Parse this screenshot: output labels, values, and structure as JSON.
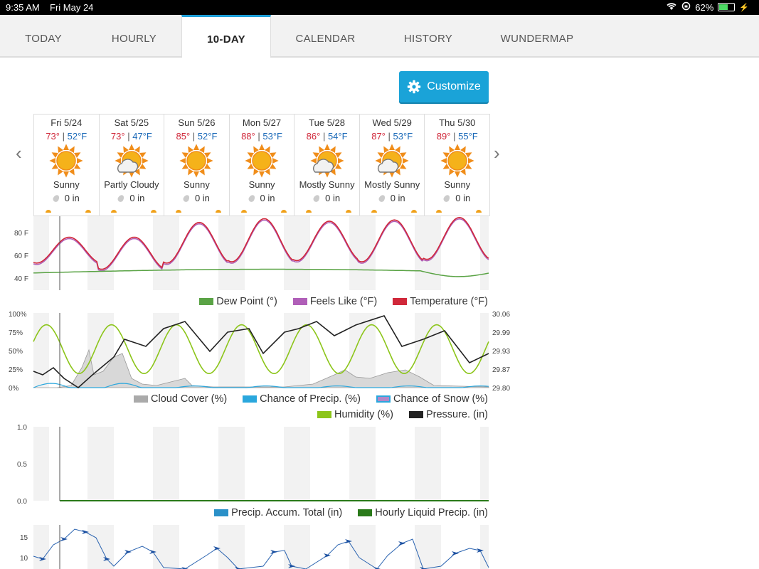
{
  "status_bar": {
    "time": "9:35 AM",
    "date": "Fri May 24",
    "battery": "62%"
  },
  "tabs": [
    {
      "label": "TODAY",
      "active": false
    },
    {
      "label": "HOURLY",
      "active": false
    },
    {
      "label": "10-DAY",
      "active": true
    },
    {
      "label": "CALENDAR",
      "active": false
    },
    {
      "label": "HISTORY",
      "active": false
    },
    {
      "label": "WUNDERMAP",
      "active": false
    }
  ],
  "customize_label": "Customize",
  "days": [
    {
      "name": "Fri 5/24",
      "hi": "73°",
      "lo": "52°F",
      "cond": "Sunny",
      "icon": "sun",
      "precip": "0 in"
    },
    {
      "name": "Sat 5/25",
      "hi": "73°",
      "lo": "47°F",
      "cond": "Partly Cloudy",
      "icon": "sun-cloud",
      "precip": "0 in"
    },
    {
      "name": "Sun 5/26",
      "hi": "85°",
      "lo": "52°F",
      "cond": "Sunny",
      "icon": "sun",
      "precip": "0 in"
    },
    {
      "name": "Mon 5/27",
      "hi": "88°",
      "lo": "53°F",
      "cond": "Sunny",
      "icon": "sun",
      "precip": "0 in"
    },
    {
      "name": "Tue 5/28",
      "hi": "86°",
      "lo": "54°F",
      "cond": "Mostly Sunny",
      "icon": "sun-cloud",
      "precip": "0 in"
    },
    {
      "name": "Wed 5/29",
      "hi": "87°",
      "lo": "53°F",
      "cond": "Mostly Sunny",
      "icon": "sun-cloud",
      "precip": "0 in"
    },
    {
      "name": "Thu 5/30",
      "hi": "89°",
      "lo": "55°F",
      "cond": "Sunny",
      "icon": "sun",
      "precip": "0 in"
    }
  ],
  "colors": {
    "accent": "#1aa3d8",
    "temperature": "#d0283a",
    "feels_like": "#b05fb8",
    "dew_point": "#5aa345",
    "humidity": "#8cc51a",
    "pressure": "#222222",
    "cloud": "#bbbbbb",
    "precip": "#2aa7dd",
    "snow": "#b387c7",
    "liquid": "#2a7a1a",
    "wind": "#2a63b0"
  },
  "temp_chart": {
    "y_ticks": [
      "80 F",
      "60 F",
      "40 F"
    ],
    "legend": [
      "Dew Point (°)",
      "Feels Like (°F)",
      "Temperature (°F)"
    ]
  },
  "humidity_chart": {
    "y_ticks_left": [
      "100%",
      "75%",
      "50%",
      "25%",
      "0%"
    ],
    "y_ticks_right": [
      "30.06",
      "29.99",
      "29.93",
      "29.87",
      "29.80"
    ],
    "legend_row1": [
      "Cloud Cover (%)",
      "Chance of Precip. (%)",
      "Chance of Snow (%)"
    ],
    "legend_row2": [
      "Humidity (%)",
      "Pressure. (in)"
    ]
  },
  "precip_chart": {
    "y_ticks": [
      "1.0",
      "0.5",
      "0.0"
    ],
    "legend": [
      "Precip. Accum. Total (in)",
      "Hourly Liquid Precip. (in)"
    ]
  },
  "wind_chart": {
    "y_ticks": [
      "15",
      "10"
    ]
  }
}
